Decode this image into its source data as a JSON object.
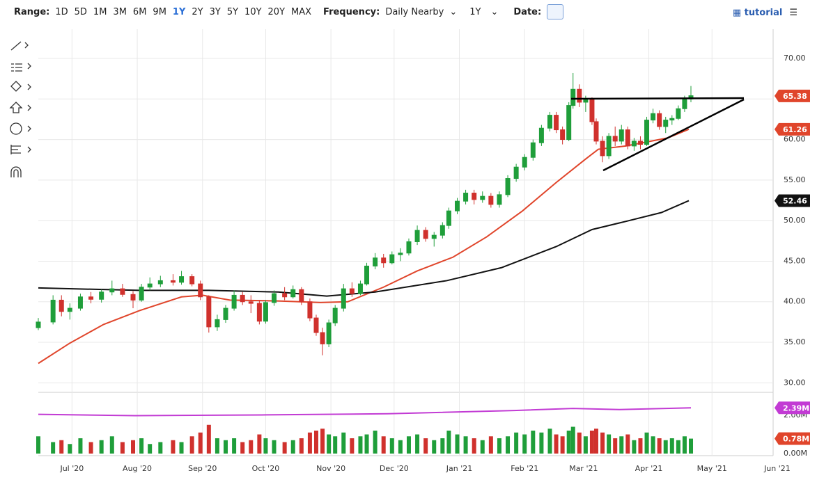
{
  "toolbar": {
    "range_label": "Range:",
    "ranges": [
      "1D",
      "5D",
      "1M",
      "3M",
      "6M",
      "9M",
      "1Y",
      "2Y",
      "3Y",
      "5Y",
      "10Y",
      "20Y",
      "MAX"
    ],
    "frequency_label": "Frequency:",
    "frequency": "Daily Nearby",
    "period": "1Y",
    "date_label": "Date:",
    "tutorial": "tutorial"
  },
  "chart_data": {
    "type": "candlestick",
    "xlim": [
      14,
      368
    ],
    "xticks": [
      {
        "value": 30,
        "label": "Jul '20"
      },
      {
        "value": 61,
        "label": "Aug '20"
      },
      {
        "value": 92,
        "label": "Sep '20"
      },
      {
        "value": 122,
        "label": "Oct '20"
      },
      {
        "value": 153,
        "label": "Nov '20"
      },
      {
        "value": 183,
        "label": "Dec '20"
      },
      {
        "value": 214,
        "label": "Jan '21"
      },
      {
        "value": 245,
        "label": "Feb '21"
      },
      {
        "value": 273,
        "label": "Mar '21"
      },
      {
        "value": 304,
        "label": "Apr '21"
      },
      {
        "value": 334,
        "label": "May '21"
      },
      {
        "value": 365,
        "label": "Jun '21"
      }
    ],
    "ylim": [
      29,
      73.6
    ],
    "yticks": [
      {
        "value": 30,
        "label": "30.00"
      },
      {
        "value": 35,
        "label": "35.00"
      },
      {
        "value": 40,
        "label": "40.00"
      },
      {
        "value": 45,
        "label": "45.00"
      },
      {
        "value": 50,
        "label": "50.00"
      },
      {
        "value": 55,
        "label": "55.00"
      },
      {
        "value": 60,
        "label": "60.00"
      },
      {
        "value": 65,
        "label": "65.00"
      },
      {
        "value": 70,
        "label": "70.00"
      }
    ],
    "grid": true,
    "up_color": "#1f9e3a",
    "down_color": "#d0312d",
    "candles": {
      "x": [
        14,
        21,
        25,
        29,
        34,
        39,
        44,
        49,
        54,
        59,
        63,
        67,
        72,
        78,
        82,
        87,
        91,
        95,
        99,
        103,
        107,
        111,
        115,
        119,
        122,
        126,
        131,
        135,
        139,
        143,
        146,
        149,
        152,
        155,
        159,
        163,
        167,
        170,
        174,
        178,
        182,
        186,
        190,
        194,
        198,
        202,
        206,
        209,
        213,
        217,
        221,
        225,
        229,
        233,
        237,
        241,
        245,
        249,
        253,
        257,
        260,
        263,
        266,
        268,
        271,
        274,
        277,
        279,
        282,
        285,
        288,
        291,
        294,
        297,
        300,
        303,
        306,
        309,
        312,
        315,
        318,
        321,
        324
      ],
      "open": [
        36.8,
        37.5,
        40.2,
        38.8,
        39.2,
        40.6,
        40.3,
        41.2,
        41.6,
        40.9,
        40.2,
        41.8,
        42.2,
        42.6,
        42.4,
        43.1,
        42.2,
        40.6,
        36.9,
        37.8,
        39.2,
        40.8,
        40.0,
        39.8,
        37.6,
        39.9,
        41.0,
        40.6,
        41.5,
        40.0,
        38.0,
        36.2,
        34.8,
        37.4,
        39.2,
        41.6,
        41.0,
        42.2,
        44.4,
        45.4,
        44.8,
        45.8,
        46.0,
        47.4,
        48.8,
        47.8,
        48.2,
        49.4,
        51.2,
        52.4,
        53.4,
        52.6,
        53.0,
        52.0,
        53.2,
        55.2,
        56.6,
        57.8,
        59.6,
        61.4,
        63.0,
        61.2,
        60.0,
        64.2,
        66.2,
        64.6,
        64.9,
        62.2,
        59.8,
        58.0,
        60.4,
        59.8,
        61.2,
        59.2,
        59.8,
        59.4,
        62.4,
        63.2,
        61.6,
        62.4,
        62.6,
        63.8,
        65.0
      ],
      "high": [
        38.0,
        40.8,
        40.8,
        39.8,
        41.0,
        41.2,
        41.5,
        42.6,
        42.2,
        41.3,
        42.2,
        43.0,
        43.2,
        43.4,
        43.8,
        43.4,
        42.6,
        40.8,
        38.4,
        39.6,
        41.4,
        41.2,
        40.8,
        40.2,
        40.2,
        41.4,
        41.8,
        42.0,
        41.8,
        40.4,
        38.4,
        36.8,
        37.8,
        39.6,
        42.2,
        42.4,
        42.6,
        44.8,
        46.0,
        45.9,
        46.2,
        46.6,
        47.8,
        49.4,
        49.2,
        48.6,
        49.8,
        51.6,
        52.8,
        53.8,
        53.8,
        53.6,
        53.4,
        53.6,
        55.6,
        57.0,
        58.2,
        60.0,
        61.8,
        63.4,
        63.4,
        61.6,
        64.6,
        68.2,
        66.8,
        65.4,
        65.2,
        62.6,
        60.4,
        60.8,
        61.6,
        61.8,
        61.6,
        60.2,
        60.4,
        62.8,
        63.8,
        63.6,
        62.8,
        63.0,
        64.2,
        65.4,
        66.6
      ],
      "low": [
        36.5,
        37.2,
        38.2,
        37.8,
        38.9,
        39.8,
        39.9,
        40.8,
        40.6,
        39.2,
        40.0,
        41.4,
        41.8,
        42.0,
        42.1,
        41.9,
        40.2,
        36.2,
        36.4,
        37.4,
        38.9,
        39.6,
        38.6,
        37.2,
        37.3,
        39.5,
        40.2,
        40.4,
        39.6,
        37.6,
        35.8,
        33.4,
        34.4,
        37.0,
        38.8,
        40.6,
        40.8,
        42.0,
        44.0,
        44.2,
        44.6,
        45.0,
        45.7,
        47.0,
        47.4,
        46.8,
        47.8,
        49.0,
        50.8,
        52.0,
        52.0,
        52.2,
        51.6,
        51.6,
        52.9,
        54.8,
        56.2,
        57.4,
        59.2,
        61.0,
        60.8,
        59.4,
        59.8,
        63.8,
        64.0,
        63.4,
        61.8,
        59.4,
        57.2,
        57.6,
        59.2,
        59.4,
        58.8,
        58.6,
        58.8,
        59.2,
        62.0,
        61.2,
        60.8,
        61.8,
        62.4,
        63.4,
        64.6
      ],
      "close": [
        37.5,
        40.2,
        38.8,
        39.2,
        40.6,
        40.3,
        41.2,
        41.6,
        40.9,
        40.2,
        41.8,
        42.2,
        42.6,
        42.4,
        43.1,
        42.2,
        40.6,
        36.9,
        37.8,
        39.2,
        40.8,
        40.0,
        39.8,
        37.6,
        39.9,
        41.0,
        40.6,
        41.5,
        40.0,
        38.0,
        36.2,
        34.8,
        37.4,
        39.2,
        41.6,
        41.0,
        42.2,
        44.4,
        45.4,
        44.8,
        45.8,
        46.0,
        47.4,
        48.8,
        47.8,
        48.2,
        49.4,
        51.2,
        52.4,
        53.4,
        52.6,
        53.0,
        52.0,
        53.2,
        55.2,
        56.6,
        57.8,
        59.6,
        61.4,
        63.0,
        61.2,
        60.0,
        64.2,
        66.2,
        64.6,
        64.9,
        62.2,
        59.8,
        58.0,
        60.4,
        59.8,
        61.2,
        59.2,
        59.8,
        59.4,
        62.4,
        63.2,
        61.6,
        62.4,
        62.6,
        63.8,
        65.0,
        65.4
      ]
    },
    "series": [
      {
        "color": "#e0452b",
        "x": [
          14,
          29,
          45,
          62,
          82,
          92,
          105,
          128,
          148,
          161,
          178,
          194,
          211,
          227,
          244,
          260,
          274,
          280,
          293,
          313,
          323
        ],
        "values": [
          32.4,
          34.9,
          37.2,
          38.9,
          40.6,
          40.8,
          40.2,
          40.1,
          39.9,
          40.0,
          41.8,
          43.8,
          45.5,
          48.0,
          51.2,
          54.7,
          57.6,
          58.8,
          59.2,
          60.2,
          61.26
        ]
      },
      {
        "color": "#111111",
        "x": [
          14,
          62,
          95,
          128,
          151,
          174,
          208,
          234,
          260,
          277,
          293,
          310,
          323
        ],
        "values": [
          41.7,
          41.4,
          41.4,
          41.2,
          40.7,
          41.2,
          42.6,
          44.2,
          46.8,
          48.9,
          49.9,
          51.0,
          52.46
        ]
      }
    ],
    "last_values": [
      {
        "value": 65.38,
        "color": "#e0452b"
      },
      {
        "value": 61.26,
        "color": "#e0452b"
      },
      {
        "value": 52.46,
        "color": "#111111"
      }
    ],
    "volume": {
      "ylim": [
        0,
        3.2
      ],
      "yticks": [
        {
          "value": 0,
          "label": "0.00M"
        },
        {
          "value": 2,
          "label": "2.00M"
        }
      ],
      "values": [
        0.9,
        0.6,
        0.7,
        0.5,
        0.8,
        0.6,
        0.7,
        0.9,
        0.6,
        0.7,
        0.8,
        0.5,
        0.6,
        0.7,
        0.6,
        0.9,
        1.1,
        1.5,
        0.8,
        0.7,
        0.8,
        0.6,
        0.7,
        1.0,
        0.8,
        0.7,
        0.6,
        0.7,
        0.8,
        1.1,
        1.2,
        1.3,
        1.0,
        0.9,
        1.1,
        0.8,
        0.9,
        1.0,
        1.2,
        0.9,
        0.8,
        0.7,
        0.9,
        1.0,
        0.8,
        0.7,
        0.8,
        1.2,
        1.0,
        0.9,
        0.8,
        0.7,
        0.9,
        0.8,
        0.9,
        1.1,
        1.0,
        1.2,
        1.1,
        1.3,
        1.0,
        0.9,
        1.2,
        1.4,
        1.1,
        0.9,
        1.2,
        1.3,
        1.1,
        1.0,
        0.8,
        0.9,
        1.0,
        0.7,
        0.8,
        1.1,
        0.9,
        0.8,
        0.7,
        0.8,
        0.7,
        0.9,
        0.78
      ],
      "average": {
        "color": "#c23bd4",
        "x": [
          14,
          60,
          120,
          180,
          240,
          268,
          290,
          324
        ],
        "values": [
          2.05,
          1.98,
          2.02,
          2.08,
          2.25,
          2.36,
          2.3,
          2.39
        ]
      },
      "badges": [
        {
          "value": 2.39,
          "value_label": "2.39M",
          "color": "#c23bd4"
        },
        {
          "value": 0.78,
          "value_label": "0.78M",
          "color": "#e0452b"
        }
      ]
    }
  }
}
